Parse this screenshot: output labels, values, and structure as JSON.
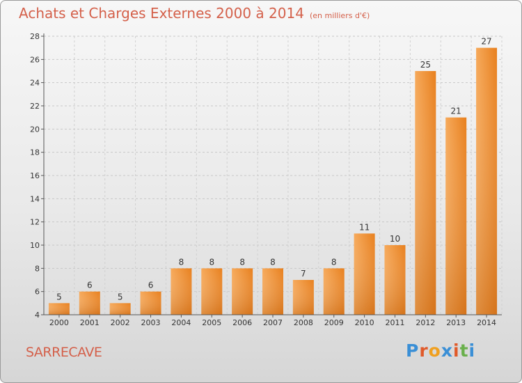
{
  "chart_data": {
    "type": "bar",
    "title": "Achats et Charges Externes 2000 à 2014",
    "subtitle": "(en milliers d'€)",
    "categories": [
      "2000",
      "2001",
      "2002",
      "2003",
      "2004",
      "2005",
      "2006",
      "2007",
      "2008",
      "2009",
      "2010",
      "2011",
      "2012",
      "2013",
      "2014"
    ],
    "values": [
      5,
      6,
      5,
      6,
      8,
      8,
      8,
      8,
      7,
      8,
      11,
      10,
      25,
      21,
      27
    ],
    "ylim": [
      4,
      28
    ],
    "yticks": [
      4,
      6,
      8,
      10,
      12,
      14,
      16,
      18,
      20,
      22,
      24,
      26,
      28
    ],
    "grid": true,
    "bar_color": "#f0923a",
    "bar_color_dark": "#d4701c",
    "title_color": "#d4604a"
  },
  "footer": {
    "place": "SARRECAVE",
    "logo_letters": [
      "P",
      "r",
      "o",
      "x",
      "i",
      "t",
      "i"
    ],
    "logo_colors": [
      "#3a8fd6",
      "#e05a2a",
      "#f0a020",
      "#3a8fd6",
      "#e05a2a",
      "#6ab04c",
      "#3a8fd6"
    ]
  }
}
